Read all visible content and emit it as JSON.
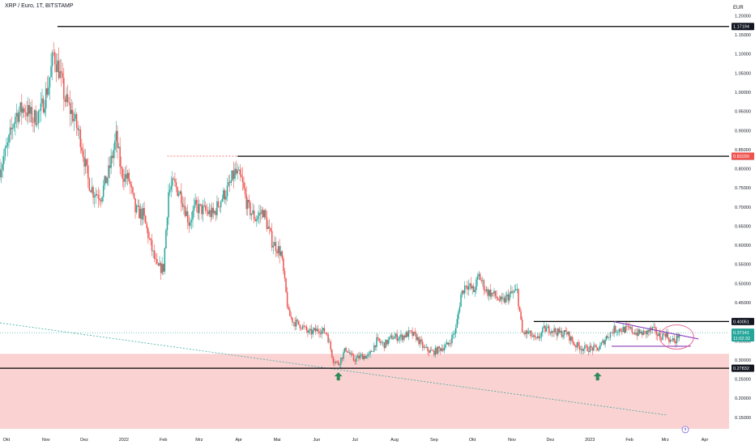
{
  "header": {
    "symbol_title": "XRP / Euro, 1T, BITSTAMP",
    "currency": "EUR"
  },
  "colors": {
    "up": "#26a69a",
    "down": "#ef5350",
    "zone": "#f9caca",
    "line": "#000000",
    "trend": "#8b3fbf",
    "arrow": "#2e8b57",
    "circle": "#e85d8a"
  },
  "chart_data": {
    "type": "candlestick",
    "title": "XRP / Euro, 1T, BITSTAMP",
    "ylabel": "EUR",
    "ylim": [
      0.12,
      1.22
    ],
    "xlim": [
      "2021-09-26",
      "2023-04-20"
    ],
    "y_ticks": [
      0.15,
      0.2,
      0.25,
      0.3,
      0.35,
      0.4,
      0.45,
      0.5,
      0.55,
      0.6,
      0.65,
      0.7,
      0.75,
      0.8,
      0.85,
      0.9,
      0.95,
      1.0,
      1.05,
      1.1,
      1.15,
      1.2
    ],
    "y_tick_labels": [
      "0.15000",
      "0.20000",
      "0.25000",
      "0.30000",
      "0.35000",
      "0.40000",
      "0.45000",
      "0.50000",
      "0.55000",
      "0.60000",
      "0.65000",
      "0.70000",
      "0.75000",
      "0.80000",
      "0.85000",
      "0.90000",
      "0.95000",
      "1.00000",
      "1.05000",
      "1.10000",
      "1.15000",
      "1.20000"
    ],
    "x_ticks": [
      {
        "date": "2021-10-01",
        "label": "Okt"
      },
      {
        "date": "2021-11-01",
        "label": "Nov"
      },
      {
        "date": "2021-12-01",
        "label": "Dez"
      },
      {
        "date": "2022-01-01",
        "label": "2022"
      },
      {
        "date": "2022-02-01",
        "label": "Feb"
      },
      {
        "date": "2022-03-01",
        "label": "Mrz"
      },
      {
        "date": "2022-04-01",
        "label": "Apr"
      },
      {
        "date": "2022-05-01",
        "label": "Mai"
      },
      {
        "date": "2022-06-01",
        "label": "Jun"
      },
      {
        "date": "2022-07-01",
        "label": "Jul"
      },
      {
        "date": "2022-08-01",
        "label": "Aug"
      },
      {
        "date": "2022-09-01",
        "label": "Sep"
      },
      {
        "date": "2022-10-01",
        "label": "Okt"
      },
      {
        "date": "2022-11-01",
        "label": "Nov"
      },
      {
        "date": "2022-12-01",
        "label": "Dez"
      },
      {
        "date": "2023-01-01",
        "label": "2023"
      },
      {
        "date": "2023-02-01",
        "label": "Feb"
      },
      {
        "date": "2023-03-01",
        "label": "Mrz"
      },
      {
        "date": "2023-04-01",
        "label": "Apr"
      }
    ],
    "price_path": [
      [
        "2021-09-26",
        0.8
      ],
      [
        "2021-10-02",
        0.86
      ],
      [
        "2021-10-08",
        0.94
      ],
      [
        "2021-10-15",
        0.96
      ],
      [
        "2021-10-22",
        0.93
      ],
      [
        "2021-10-28",
        0.95
      ],
      [
        "2021-11-03",
        1.02
      ],
      [
        "2021-11-07",
        1.1
      ],
      [
        "2021-11-11",
        1.06
      ],
      [
        "2021-11-16",
        0.98
      ],
      [
        "2021-11-22",
        0.94
      ],
      [
        "2021-11-28",
        0.88
      ],
      [
        "2021-12-04",
        0.77
      ],
      [
        "2021-12-08",
        0.74
      ],
      [
        "2021-12-14",
        0.73
      ],
      [
        "2021-12-20",
        0.79
      ],
      [
        "2021-12-26",
        0.88
      ],
      [
        "2021-12-30",
        0.79
      ],
      [
        "2022-01-05",
        0.77
      ],
      [
        "2022-01-10",
        0.69
      ],
      [
        "2022-01-16",
        0.68
      ],
      [
        "2022-01-22",
        0.6
      ],
      [
        "2022-01-27",
        0.54
      ],
      [
        "2022-02-01",
        0.54
      ],
      [
        "2022-02-05",
        0.74
      ],
      [
        "2022-02-09",
        0.76
      ],
      [
        "2022-02-15",
        0.73
      ],
      [
        "2022-02-21",
        0.66
      ],
      [
        "2022-02-26",
        0.7
      ],
      [
        "2022-03-05",
        0.69
      ],
      [
        "2022-03-12",
        0.68
      ],
      [
        "2022-03-18",
        0.72
      ],
      [
        "2022-03-24",
        0.75
      ],
      [
        "2022-03-29",
        0.79
      ],
      [
        "2022-04-03",
        0.77
      ],
      [
        "2022-04-08",
        0.7
      ],
      [
        "2022-04-14",
        0.67
      ],
      [
        "2022-04-20",
        0.69
      ],
      [
        "2022-04-27",
        0.61
      ],
      [
        "2022-05-04",
        0.58
      ],
      [
        "2022-05-10",
        0.42
      ],
      [
        "2022-05-14",
        0.4
      ],
      [
        "2022-05-20",
        0.39
      ],
      [
        "2022-05-26",
        0.37
      ],
      [
        "2022-06-03",
        0.38
      ],
      [
        "2022-06-09",
        0.37
      ],
      [
        "2022-06-14",
        0.3
      ],
      [
        "2022-06-18",
        0.29
      ],
      [
        "2022-06-24",
        0.33
      ],
      [
        "2022-06-30",
        0.3
      ],
      [
        "2022-07-06",
        0.31
      ],
      [
        "2022-07-12",
        0.31
      ],
      [
        "2022-07-18",
        0.35
      ],
      [
        "2022-07-24",
        0.34
      ],
      [
        "2022-07-30",
        0.36
      ],
      [
        "2022-08-06",
        0.36
      ],
      [
        "2022-08-13",
        0.37
      ],
      [
        "2022-08-18",
        0.36
      ],
      [
        "2022-08-24",
        0.33
      ],
      [
        "2022-08-31",
        0.32
      ],
      [
        "2022-09-06",
        0.33
      ],
      [
        "2022-09-12",
        0.34
      ],
      [
        "2022-09-18",
        0.38
      ],
      [
        "2022-09-22",
        0.47
      ],
      [
        "2022-09-26",
        0.5
      ],
      [
        "2022-10-02",
        0.48
      ],
      [
        "2022-10-06",
        0.52
      ],
      [
        "2022-10-12",
        0.48
      ],
      [
        "2022-10-18",
        0.47
      ],
      [
        "2022-10-24",
        0.45
      ],
      [
        "2022-10-30",
        0.47
      ],
      [
        "2022-11-05",
        0.48
      ],
      [
        "2022-11-09",
        0.37
      ],
      [
        "2022-11-14",
        0.37
      ],
      [
        "2022-11-20",
        0.35
      ],
      [
        "2022-11-26",
        0.38
      ],
      [
        "2022-12-02",
        0.38
      ],
      [
        "2022-12-08",
        0.37
      ],
      [
        "2022-12-14",
        0.37
      ],
      [
        "2022-12-20",
        0.34
      ],
      [
        "2022-12-27",
        0.33
      ],
      [
        "2023-01-02",
        0.33
      ],
      [
        "2023-01-08",
        0.33
      ],
      [
        "2023-01-14",
        0.36
      ],
      [
        "2023-01-20",
        0.38
      ],
      [
        "2023-01-26",
        0.38
      ],
      [
        "2023-02-01",
        0.38
      ],
      [
        "2023-02-07",
        0.37
      ],
      [
        "2023-02-13",
        0.37
      ],
      [
        "2023-02-19",
        0.38
      ],
      [
        "2023-02-25",
        0.36
      ],
      [
        "2023-03-01",
        0.37
      ],
      [
        "2023-03-05",
        0.35
      ],
      [
        "2023-03-09",
        0.35
      ],
      [
        "2023-03-12",
        0.37
      ]
    ],
    "horizontal_levels": [
      {
        "price": 1.17194,
        "label": "1.17194",
        "from": "2021-11-10"
      },
      {
        "price": 0.8326,
        "label": "0.83260",
        "from": "2022-03-31"
      },
      {
        "price": 0.40051,
        "label": "0.40051",
        "from": "2022-11-18"
      },
      {
        "price": 0.27832,
        "label": "0.27832",
        "from": "2021-09-26"
      }
    ],
    "dotted_level": {
      "price": 0.8329,
      "from": "2022-02-04",
      "to": "2022-03-31"
    },
    "current_price": {
      "price": 0.37141,
      "label": "0.37141",
      "countdown": "11:02:32"
    },
    "marker_price": {
      "price": 0.8329,
      "label": "0.83290"
    },
    "support_zone": {
      "low": 0.12,
      "high": 0.316
    },
    "support_arrows": [
      {
        "date": "2022-06-18",
        "price": 0.255
      },
      {
        "date": "2023-01-07",
        "price": 0.255
      }
    ],
    "long_trendline": [
      [
        "2021-09-26",
        0.397
      ],
      [
        "2023-03-02",
        0.156
      ]
    ],
    "wedge_upper": [
      [
        "2023-01-20",
        0.4
      ],
      [
        "2023-03-27",
        0.355
      ]
    ],
    "wedge_lower": [
      [
        "2023-01-18",
        0.336
      ],
      [
        "2023-03-21",
        0.336
      ]
    ],
    "ellipse": {
      "date": "2023-03-10",
      "price": 0.36
    }
  }
}
